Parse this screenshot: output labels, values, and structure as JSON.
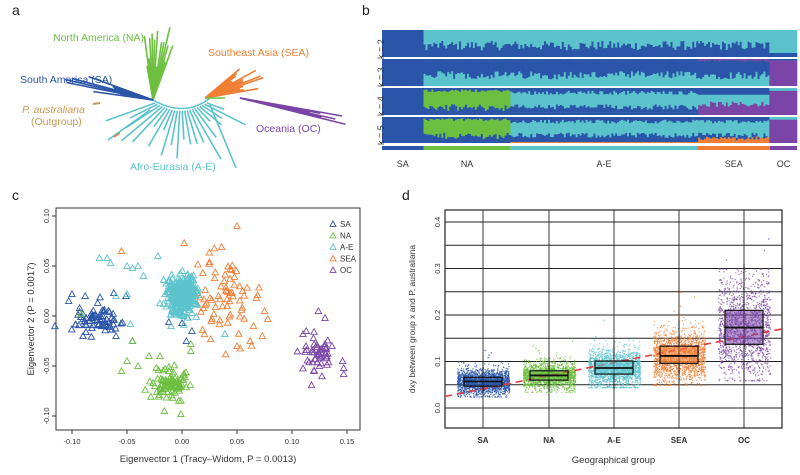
{
  "colors": {
    "SA": "#2a55a8",
    "NA": "#6cbf3f",
    "A-E": "#5bc3cc",
    "SEA": "#f07f35",
    "OC": "#7a45a6",
    "outgroup": "#c99a55",
    "trend": "#e8383a",
    "axis": "#333333"
  },
  "panel_a": {
    "letter": "a",
    "labels": {
      "NA": "North America (NA)",
      "SEA": "Southeast Asia (SEA)",
      "SA": "South America (SA)",
      "outgroup_name": "P. australiana",
      "outgroup_sub": "(Outgroup)",
      "OC": "Oceania (OC)",
      "AE": "Afro-Eurasia (A-E)"
    }
  },
  "panel_b": {
    "letter": "b",
    "row_labels": [
      "k = 2",
      "k = 3",
      "k = 4",
      "k = 5"
    ],
    "group_labels": [
      "SA",
      "NA",
      "A-E",
      "SEA",
      "OC"
    ],
    "group_fractions": [
      0.1,
      0.21,
      0.45,
      0.175,
      0.065
    ]
  },
  "chart_data": [
    {
      "type": "scatter",
      "panel": "c",
      "title": "",
      "xlabel": "Eigenvector 1 (Tracy–Widom, P = 0.0013)",
      "ylabel": "Eigenvector 2 (P = 0.0017)",
      "xlim": [
        -0.11,
        0.155
      ],
      "ylim": [
        -0.11,
        0.105
      ],
      "xticks": [
        "-0.10",
        "-0.05",
        "0.00",
        "0.05",
        "0.10",
        "0.15"
      ],
      "xtick_values": [
        -0.1,
        -0.05,
        0,
        0.05,
        0.1,
        0.15
      ],
      "yticks": [
        "-0.10",
        "-0.05",
        "0.00",
        "0.05",
        "0.10"
      ],
      "ytick_values": [
        -0.1,
        -0.05,
        0,
        0.05,
        0.1
      ],
      "legend": [
        "SA",
        "NA",
        "A-E",
        "SEA",
        "OC"
      ],
      "legend_position": "top-right",
      "marker": "open-triangle",
      "series": [
        {
          "name": "SA",
          "center": [
            -0.077,
            -0.004
          ],
          "spread": [
            0.012,
            0.009
          ],
          "n": 70,
          "extra": [
            [
              -0.103,
              0.015
            ],
            [
              -0.1,
              0.022
            ],
            [
              -0.088,
              0.02
            ],
            [
              -0.062,
              0.023
            ],
            [
              -0.051,
              0.02
            ],
            [
              -0.045,
              -0.025
            ],
            [
              -0.09,
              -0.02
            ],
            [
              -0.06,
              -0.02
            ],
            [
              -0.012,
              -0.006
            ],
            [
              0.0,
              -0.007
            ],
            [
              0.009,
              -0.015
            ],
            [
              0.004,
              -0.025
            ]
          ]
        },
        {
          "name": "NA",
          "center": [
            -0.012,
            -0.068
          ],
          "spread": [
            0.012,
            0.01
          ],
          "n": 90,
          "extra": [
            [
              -0.055,
              -0.055
            ],
            [
              -0.05,
              -0.045
            ],
            [
              -0.04,
              -0.05
            ],
            [
              -0.03,
              -0.04
            ],
            [
              -0.02,
              -0.04
            ],
            [
              -0.016,
              -0.095
            ],
            [
              -0.001,
              -0.098
            ],
            [
              0.008,
              -0.028
            ],
            [
              0.008,
              -0.035
            ],
            [
              -0.092,
              0.002
            ],
            [
              -0.045,
              -0.025
            ]
          ]
        },
        {
          "name": "A-E",
          "center": [
            0.0,
            0.02
          ],
          "spread": [
            0.008,
            0.012
          ],
          "n": 320,
          "extra": [
            [
              -0.075,
              0.058
            ],
            [
              -0.068,
              0.058
            ],
            [
              -0.065,
              0.053
            ],
            [
              -0.05,
              0.05
            ],
            [
              -0.045,
              0.048
            ],
            [
              -0.04,
              0.05
            ],
            [
              -0.022,
              0.06
            ],
            [
              -0.035,
              0.04
            ],
            [
              -0.05,
              0.022
            ],
            [
              -0.06,
              0.02
            ],
            [
              -0.047,
              -0.008
            ],
            [
              0.039,
              -0.018
            ],
            [
              -0.01,
              -0.01
            ]
          ]
        },
        {
          "name": "SEA",
          "center": [
            0.04,
            0.02
          ],
          "spread": [
            0.02,
            0.025
          ],
          "n": 70,
          "extra": [
            [
              0.05,
              0.09
            ],
            [
              -0.055,
              0.065
            ],
            [
              0.002,
              0.073
            ],
            [
              0.036,
              0.069
            ],
            [
              0.025,
              0.054
            ],
            [
              0.045,
              0.046
            ],
            [
              0.05,
              -0.03
            ],
            [
              0.062,
              -0.025
            ],
            [
              0.073,
              -0.02
            ],
            [
              0.075,
              0.005
            ],
            [
              0.078,
              -0.003
            ],
            [
              0.065,
              -0.01
            ]
          ]
        },
        {
          "name": "OC",
          "center": [
            0.123,
            -0.033
          ],
          "spread": [
            0.008,
            0.012
          ],
          "n": 45,
          "extra": [
            [
              0.124,
              0.005
            ],
            [
              0.13,
              -0.002
            ],
            [
              0.113,
              -0.015
            ],
            [
              0.146,
              -0.045
            ],
            [
              0.147,
              -0.058
            ],
            [
              0.147,
              -0.052
            ],
            [
              0.12,
              -0.055
            ],
            [
              0.125,
              -0.05
            ],
            [
              0.11,
              -0.018
            ]
          ]
        }
      ]
    },
    {
      "type": "box",
      "panel": "d",
      "title": "",
      "xlabel": "Geographical group",
      "ylabel": "dxy between group x and P. australiana",
      "ylim": [
        -0.015,
        0.43
      ],
      "yticks": [
        "0.0",
        "0.1",
        "0.2",
        "0.3",
        "0.4"
      ],
      "ytick_values": [
        0,
        0.1,
        0.2,
        0.3,
        0.4
      ],
      "grid": true,
      "categories": [
        "SA",
        "NA",
        "A-E",
        "SEA",
        "OC"
      ],
      "boxes": [
        {
          "name": "SA",
          "q1": 0.047,
          "median": 0.057,
          "q3": 0.066,
          "whisker_low": 0.03,
          "whisker_high": 0.1,
          "points_min": 0.025,
          "points_max": 0.1,
          "outliers": [
            0.12,
            0.115,
            0.11,
            0.125
          ]
        },
        {
          "name": "NA",
          "q1": 0.06,
          "median": 0.07,
          "q3": 0.08,
          "whisker_low": 0.035,
          "whisker_high": 0.11,
          "points_min": 0.035,
          "points_max": 0.12,
          "outliers": [
            0.13,
            0.135,
            0.145,
            0.125
          ]
        },
        {
          "name": "A-E",
          "q1": 0.073,
          "median": 0.086,
          "q3": 0.101,
          "whisker_low": 0.04,
          "whisker_high": 0.145,
          "points_min": 0.045,
          "points_max": 0.15,
          "outliers": [
            0.155,
            0.19,
            0.16
          ]
        },
        {
          "name": "SEA",
          "q1": 0.096,
          "median": 0.112,
          "q3": 0.133,
          "whisker_low": 0.05,
          "whisker_high": 0.19,
          "points_min": 0.05,
          "points_max": 0.2,
          "outliers": [
            0.22,
            0.25,
            0.24,
            0.21
          ]
        },
        {
          "name": "OC",
          "q1": 0.137,
          "median": 0.173,
          "q3": 0.21,
          "whisker_low": 0.055,
          "whisker_high": 0.31,
          "points_min": 0.06,
          "points_max": 0.3,
          "outliers": [
            0.36,
            0.365,
            0.34,
            0.32
          ]
        }
      ],
      "trend_line": {
        "x_start_value": 0.025,
        "x_end_value": 0.17,
        "style": "dashed"
      }
    }
  ]
}
